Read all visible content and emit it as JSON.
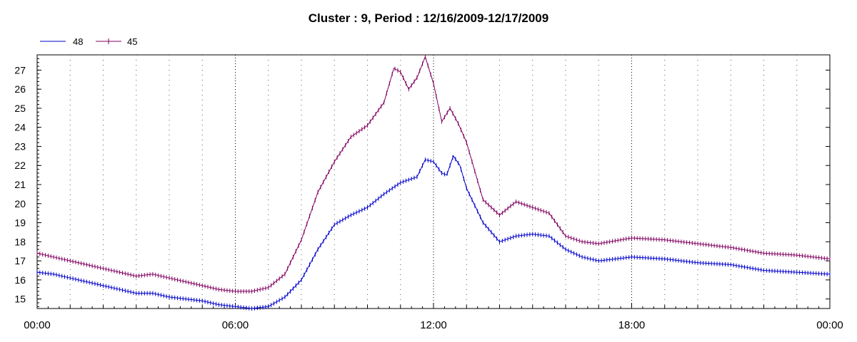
{
  "chart_data": {
    "type": "line",
    "title": "Cluster : 9, Period : 12/16/2009-12/17/2009",
    "xlabel": "",
    "ylabel": "",
    "x_ticks": [
      "00:00",
      "06:00",
      "12:00",
      "18:00",
      "00:00"
    ],
    "x_range_hours": [
      0,
      24
    ],
    "ylim": [
      14.5,
      27.8
    ],
    "y_ticks": [
      15,
      16,
      17,
      18,
      19,
      20,
      21,
      22,
      23,
      24,
      25,
      26,
      27
    ],
    "grid": "dotted",
    "legend": "top-left",
    "series": [
      {
        "name": "48",
        "color": "#0000cc",
        "x": [
          0,
          0.5,
          1,
          1.5,
          2,
          2.5,
          3,
          3.5,
          4,
          4.5,
          5,
          5.5,
          6,
          6.5,
          7,
          7.5,
          8,
          8.5,
          9,
          9.5,
          10,
          10.5,
          11,
          11.5,
          11.75,
          12,
          12.25,
          12.4,
          12.6,
          12.8,
          13,
          13.5,
          14,
          14.5,
          15,
          15.5,
          16,
          16.5,
          17,
          18,
          19,
          20,
          21,
          22,
          23,
          24
        ],
        "y": [
          16.4,
          16.3,
          16.1,
          15.9,
          15.7,
          15.5,
          15.3,
          15.3,
          15.1,
          15.0,
          14.9,
          14.7,
          14.6,
          14.5,
          14.6,
          15.1,
          16.0,
          17.6,
          18.9,
          19.4,
          19.8,
          20.5,
          21.1,
          21.4,
          22.3,
          22.2,
          21.6,
          21.5,
          22.5,
          22.0,
          20.8,
          19.0,
          18.0,
          18.3,
          18.4,
          18.3,
          17.6,
          17.2,
          17.0,
          17.2,
          17.1,
          16.9,
          16.8,
          16.5,
          16.4,
          16.3
        ]
      },
      {
        "name": "45",
        "color": "#800060",
        "x": [
          0,
          0.5,
          1,
          1.5,
          2,
          2.5,
          3,
          3.5,
          4,
          4.5,
          5,
          5.5,
          6,
          6.5,
          7,
          7.5,
          8,
          8.5,
          9,
          9.5,
          10,
          10.5,
          10.8,
          11,
          11.25,
          11.5,
          11.75,
          12,
          12.25,
          12.5,
          12.75,
          13,
          13.5,
          14,
          14.5,
          15,
          15.5,
          16,
          16.5,
          17,
          18,
          19,
          20,
          21,
          22,
          23,
          24
        ],
        "y": [
          17.4,
          17.2,
          17.0,
          16.8,
          16.6,
          16.4,
          16.2,
          16.3,
          16.1,
          15.9,
          15.7,
          15.5,
          15.4,
          15.4,
          15.6,
          16.3,
          18.1,
          20.6,
          22.2,
          23.5,
          24.1,
          25.3,
          27.1,
          26.9,
          26.0,
          26.6,
          27.7,
          26.3,
          24.3,
          25.0,
          24.2,
          23.2,
          20.2,
          19.4,
          20.1,
          19.8,
          19.5,
          18.3,
          18.0,
          17.9,
          18.2,
          18.1,
          17.9,
          17.7,
          17.4,
          17.3,
          17.1
        ]
      }
    ]
  }
}
